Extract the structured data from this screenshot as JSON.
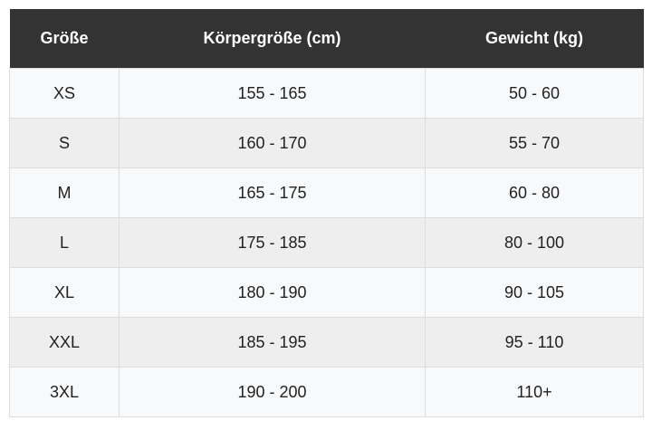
{
  "table": {
    "header": [
      "Größe",
      "Körpergröße (cm)",
      "Gewicht (kg)"
    ],
    "rows": [
      [
        "XS",
        "155 - 165",
        "50 - 60"
      ],
      [
        "S",
        "160 - 170",
        "55 - 70"
      ],
      [
        "M",
        "165 - 175",
        "60 - 80"
      ],
      [
        "L",
        "175 - 185",
        "80 - 100"
      ],
      [
        "XL",
        "180 - 190",
        "90 - 105"
      ],
      [
        "XXL",
        "185 - 195",
        "95 - 110"
      ],
      [
        "3XL",
        "190 - 200",
        "110+"
      ]
    ]
  }
}
